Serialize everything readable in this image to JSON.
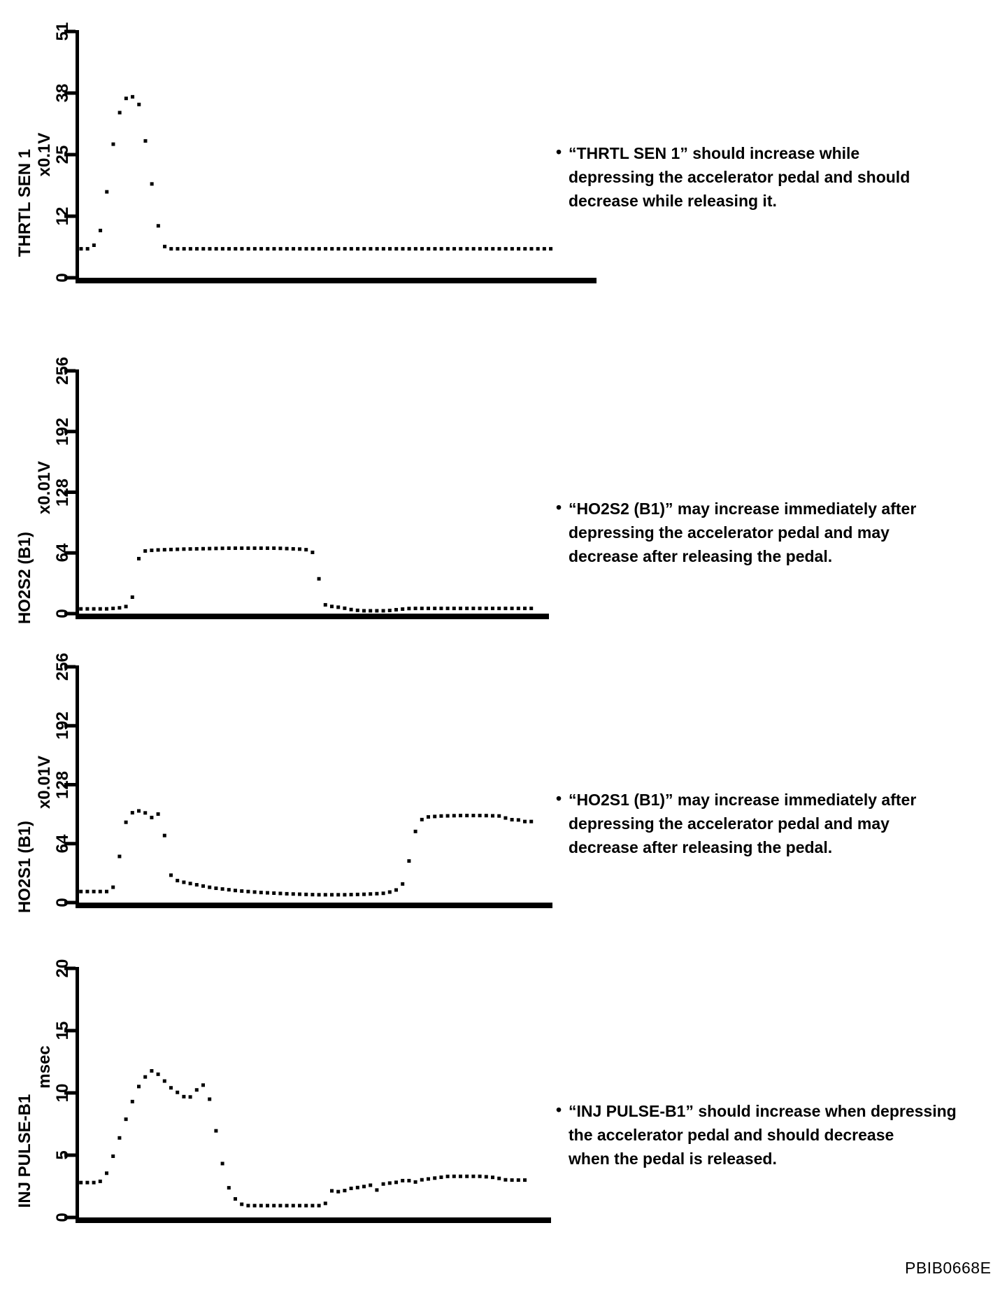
{
  "page": {
    "background": "#ffffff",
    "ink": "#000000"
  },
  "footer": {
    "code": "PBIB0668E"
  },
  "notes": [
    {
      "bullet": "•",
      "lines": [
        "“THRTL SEN 1” should increase while",
        "depressing the accelerator pedal and should",
        "decrease while releasing it."
      ]
    },
    {
      "bullet": "•",
      "lines": [
        "“HO2S2 (B1)” may increase immediately after",
        "depressing the accelerator pedal and may",
        "decrease after releasing the pedal."
      ]
    },
    {
      "bullet": "•",
      "lines": [
        "“HO2S1 (B1)” may increase immediately after",
        "depressing the accelerator pedal and may",
        "decrease after releasing the pedal."
      ]
    },
    {
      "bullet": "•",
      "lines": [
        "“INJ PULSE-B1” should increase when depressing",
        "the accelerator pedal and should decrease",
        "when the pedal is released."
      ]
    }
  ],
  "chart_data": [
    {
      "type": "scatter",
      "style": "dotted-oscilloscope-trace",
      "title": "",
      "ylabel": "THRTL SEN 1",
      "unit_label": "x0.1V",
      "xlabel": "",
      "ylim": [
        0,
        51
      ],
      "ytick_labels": [
        "0",
        "12",
        "25",
        "38",
        "51"
      ],
      "xticks_shown": false,
      "grid": false,
      "marker": "square-dot",
      "color": "#000000",
      "points_xfrac_value": [
        [
          0.004,
          6
        ],
        [
          0.02,
          6
        ],
        [
          0.032,
          7
        ],
        [
          0.042,
          10
        ],
        [
          0.05,
          15
        ],
        [
          0.058,
          21
        ],
        [
          0.065,
          27
        ],
        [
          0.072,
          31
        ],
        [
          0.078,
          34
        ],
        [
          0.084,
          36
        ],
        [
          0.092,
          37.3
        ],
        [
          0.103,
          37.5
        ],
        [
          0.112,
          37
        ],
        [
          0.119,
          35
        ],
        [
          0.126,
          30
        ],
        [
          0.133,
          25
        ],
        [
          0.14,
          20
        ],
        [
          0.148,
          14
        ],
        [
          0.156,
          9
        ],
        [
          0.165,
          6.5
        ],
        [
          0.176,
          6
        ],
        [
          0.915,
          6
        ]
      ]
    },
    {
      "type": "scatter",
      "style": "dotted-oscilloscope-trace",
      "title": "",
      "ylabel": "HO2S2 (B1)",
      "unit_label": "x0.01V",
      "xlabel": "",
      "ylim": [
        0,
        256
      ],
      "ytick_labels": [
        "0",
        "64",
        "128",
        "192",
        "256"
      ],
      "xticks_shown": false,
      "grid": false,
      "marker": "square-dot",
      "color": "#000000",
      "points_xfrac_value": [
        [
          0.004,
          5
        ],
        [
          0.06,
          5
        ],
        [
          0.085,
          6
        ],
        [
          0.098,
          7
        ],
        [
          0.106,
          9
        ],
        [
          0.112,
          14
        ],
        [
          0.117,
          25
        ],
        [
          0.121,
          40
        ],
        [
          0.125,
          55
        ],
        [
          0.131,
          63
        ],
        [
          0.14,
          66
        ],
        [
          0.16,
          67
        ],
        [
          0.22,
          68
        ],
        [
          0.32,
          69
        ],
        [
          0.42,
          69
        ],
        [
          0.47,
          68
        ],
        [
          0.492,
          67
        ],
        [
          0.502,
          62
        ],
        [
          0.507,
          50
        ],
        [
          0.511,
          35
        ],
        [
          0.515,
          20
        ],
        [
          0.521,
          10
        ],
        [
          0.53,
          8
        ],
        [
          0.548,
          7
        ],
        [
          0.562,
          6
        ],
        [
          0.582,
          4
        ],
        [
          0.602,
          3
        ],
        [
          0.655,
          3
        ],
        [
          0.682,
          4.5
        ],
        [
          0.705,
          5.5
        ],
        [
          0.81,
          5.5
        ],
        [
          0.905,
          5.5
        ],
        [
          0.97,
          5.5
        ]
      ]
    },
    {
      "type": "scatter",
      "style": "dotted-oscilloscope-trace",
      "title": "",
      "ylabel": "HO2S1 (B1)",
      "unit_label": "x0.01V",
      "xlabel": "",
      "ylim": [
        0,
        256
      ],
      "ytick_labels": [
        "0",
        "64",
        "128",
        "192",
        "256"
      ],
      "xticks_shown": false,
      "grid": false,
      "marker": "square-dot",
      "color": "#000000",
      "points_xfrac_value": [
        [
          0.004,
          12
        ],
        [
          0.06,
          12
        ],
        [
          0.07,
          14
        ],
        [
          0.078,
          25
        ],
        [
          0.084,
          45
        ],
        [
          0.09,
          65
        ],
        [
          0.096,
          82
        ],
        [
          0.102,
          92
        ],
        [
          0.11,
          97
        ],
        [
          0.12,
          99
        ],
        [
          0.132,
          100
        ],
        [
          0.141,
          97
        ],
        [
          0.148,
          91
        ],
        [
          0.156,
          93
        ],
        [
          0.164,
          97
        ],
        [
          0.171,
          95
        ],
        [
          0.177,
          86
        ],
        [
          0.182,
          68
        ],
        [
          0.187,
          48
        ],
        [
          0.192,
          32
        ],
        [
          0.198,
          26
        ],
        [
          0.212,
          23
        ],
        [
          0.242,
          20
        ],
        [
          0.282,
          16
        ],
        [
          0.332,
          13
        ],
        [
          0.382,
          11
        ],
        [
          0.442,
          9.5
        ],
        [
          0.502,
          8.5
        ],
        [
          0.562,
          8.5
        ],
        [
          0.602,
          9
        ],
        [
          0.642,
          10
        ],
        [
          0.662,
          12
        ],
        [
          0.676,
          15
        ],
        [
          0.686,
          22
        ],
        [
          0.693,
          35
        ],
        [
          0.699,
          50
        ],
        [
          0.705,
          65
        ],
        [
          0.711,
          78
        ],
        [
          0.718,
          87
        ],
        [
          0.726,
          91
        ],
        [
          0.738,
          93
        ],
        [
          0.765,
          94
        ],
        [
          0.805,
          94.5
        ],
        [
          0.855,
          94.5
        ],
        [
          0.89,
          94
        ],
        [
          0.9,
          92
        ],
        [
          0.912,
          90
        ],
        [
          0.926,
          90
        ],
        [
          0.941,
          88
        ],
        [
          0.965,
          88
        ]
      ]
    },
    {
      "type": "scatter",
      "style": "dotted-oscilloscope-trace",
      "title": "",
      "ylabel": "INJ PULSE-B1",
      "unit_label": "msec",
      "xlabel": "",
      "ylim": [
        0,
        20
      ],
      "ytick_labels": [
        "0",
        "5",
        "10",
        "15",
        "20"
      ],
      "xticks_shown": false,
      "grid": false,
      "marker": "square-dot",
      "color": "#000000",
      "points_xfrac_value": [
        [
          0.004,
          2.8
        ],
        [
          0.04,
          2.8
        ],
        [
          0.05,
          3.0
        ],
        [
          0.058,
          3.5
        ],
        [
          0.066,
          4.3
        ],
        [
          0.075,
          5.2
        ],
        [
          0.085,
          6.3
        ],
        [
          0.095,
          7.4
        ],
        [
          0.105,
          8.5
        ],
        [
          0.115,
          9.5
        ],
        [
          0.13,
          10.8
        ],
        [
          0.145,
          11.5
        ],
        [
          0.155,
          11.8
        ],
        [
          0.165,
          11.6
        ],
        [
          0.18,
          11.0
        ],
        [
          0.195,
          10.4
        ],
        [
          0.21,
          10.0
        ],
        [
          0.222,
          9.7
        ],
        [
          0.232,
          9.6
        ],
        [
          0.242,
          9.8
        ],
        [
          0.252,
          10.4
        ],
        [
          0.26,
          10.7
        ],
        [
          0.268,
          10.5
        ],
        [
          0.276,
          9.6
        ],
        [
          0.284,
          8.2
        ],
        [
          0.292,
          6.6
        ],
        [
          0.3,
          5.0
        ],
        [
          0.308,
          3.6
        ],
        [
          0.316,
          2.5
        ],
        [
          0.326,
          1.7
        ],
        [
          0.338,
          1.2
        ],
        [
          0.35,
          0.95
        ],
        [
          0.52,
          0.95
        ],
        [
          0.527,
          1.6
        ],
        [
          0.533,
          2.1
        ],
        [
          0.54,
          2.2
        ],
        [
          0.548,
          2.0
        ],
        [
          0.553,
          2.3
        ],
        [
          0.56,
          2.1
        ],
        [
          0.57,
          2.3
        ],
        [
          0.58,
          2.35
        ],
        [
          0.59,
          2.4
        ],
        [
          0.6,
          2.5
        ],
        [
          0.61,
          2.45
        ],
        [
          0.618,
          2.6
        ],
        [
          0.625,
          2.4
        ],
        [
          0.631,
          2.2
        ],
        [
          0.637,
          2.6
        ],
        [
          0.646,
          2.7
        ],
        [
          0.656,
          2.75
        ],
        [
          0.67,
          2.8
        ],
        [
          0.69,
          3.0
        ],
        [
          0.7,
          2.95
        ],
        [
          0.71,
          2.8
        ],
        [
          0.722,
          3.0
        ],
        [
          0.742,
          3.1
        ],
        [
          0.782,
          3.3
        ],
        [
          0.852,
          3.3
        ],
        [
          0.882,
          3.2
        ],
        [
          0.906,
          3.0
        ],
        [
          0.945,
          3.0
        ]
      ]
    }
  ]
}
